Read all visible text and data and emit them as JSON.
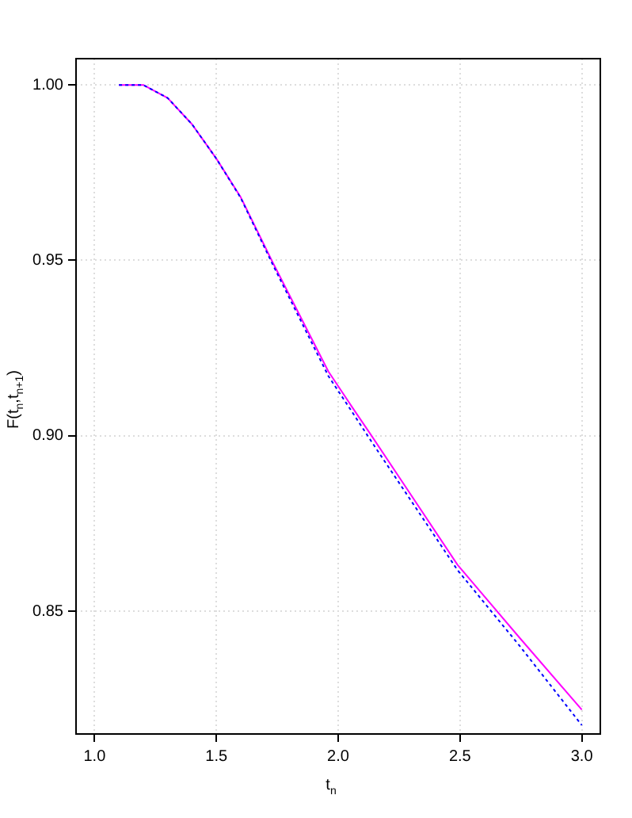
{
  "chart_data": {
    "type": "line",
    "xlabel": "t$_{n}$",
    "ylabel": "F(t$_{n}$,t$_{n+1}$)",
    "xlim": [
      0.924,
      3.076
    ],
    "xticks": [
      {
        "value": 1,
        "label": "1.0"
      },
      {
        "value": 1.5,
        "label": "1.5"
      },
      {
        "value": 2,
        "label": "2.0"
      },
      {
        "value": 2.5,
        "label": "2.5"
      },
      {
        "value": 3,
        "label": "3.0"
      }
    ],
    "ylim": [
      0.815,
      1.0075
    ],
    "yticks": [
      {
        "value": 0.85,
        "label": "0.85"
      },
      {
        "value": 0.9,
        "label": "0.90"
      },
      {
        "value": 0.95,
        "label": "0.95"
      },
      {
        "value": 1,
        "label": "1.00"
      }
    ],
    "grid": true,
    "legend": false,
    "marker": "none",
    "series": [
      {
        "color": "#ff00ff",
        "line_style": "solid",
        "x": [
          1.1,
          1.2,
          1.3,
          1.4,
          1.5,
          1.6,
          1.73,
          1.96,
          2.06,
          2.14,
          2.49,
          2.745,
          3.0
        ],
        "values": [
          1.0,
          1.0,
          0.9963,
          0.9888,
          0.979,
          0.968,
          0.9496,
          0.9183,
          0.9079,
          0.8997,
          0.8632,
          0.8424,
          0.8219
        ]
      },
      {
        "color": "#0000ff",
        "line_style": "dotted",
        "x": [
          1.1,
          1.2,
          1.3,
          1.4,
          1.5,
          1.6,
          1.73,
          1.96,
          2.06,
          2.14,
          2.49,
          2.745,
          3.0
        ],
        "values": [
          1.0,
          1.0,
          0.9963,
          0.9888,
          0.979,
          0.9678,
          0.949,
          0.917,
          0.9065,
          0.898,
          0.8617,
          0.8401,
          0.8175
        ]
      }
    ]
  }
}
